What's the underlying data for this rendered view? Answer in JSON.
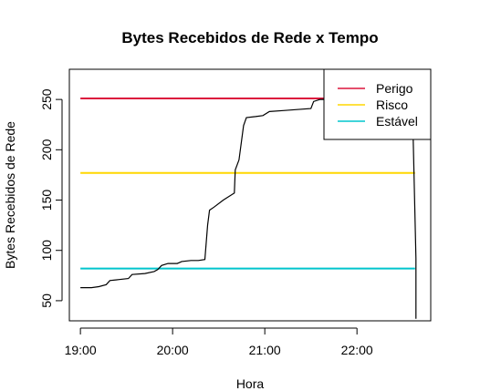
{
  "chart_data": {
    "type": "line",
    "title": "Bytes Recebidos de Rede x Tempo",
    "xlabel": "Hora",
    "ylabel": "Bytes Recebidos de Rede",
    "x_unit": "hours",
    "xlim": [
      18.88,
      22.8
    ],
    "ylim": [
      30,
      280
    ],
    "x_ticks": [
      {
        "value": 19,
        "label": "19:00"
      },
      {
        "value": 20,
        "label": "20:00"
      },
      {
        "value": 21,
        "label": "21:00"
      },
      {
        "value": 22,
        "label": "22:00"
      }
    ],
    "y_ticks": [
      {
        "value": 50,
        "label": "50"
      },
      {
        "value": 100,
        "label": "100"
      },
      {
        "value": 150,
        "label": "150"
      },
      {
        "value": 200,
        "label": "200"
      },
      {
        "value": 250,
        "label": "250"
      }
    ],
    "legend": {
      "position": "top-right",
      "entries": [
        {
          "label": "Perigo",
          "color": "#dc143c"
        },
        {
          "label": "Risco",
          "color": "#ffd700"
        },
        {
          "label": "Estável",
          "color": "#00c5cd"
        }
      ]
    },
    "series": [
      {
        "color": "#000000",
        "points": [
          [
            19.0,
            63
          ],
          [
            19.12,
            63
          ],
          [
            19.2,
            64
          ],
          [
            19.28,
            66
          ],
          [
            19.32,
            70
          ],
          [
            19.42,
            71
          ],
          [
            19.52,
            72
          ],
          [
            19.56,
            76
          ],
          [
            19.7,
            77
          ],
          [
            19.8,
            79
          ],
          [
            19.84,
            81
          ],
          [
            19.88,
            85
          ],
          [
            19.95,
            87
          ],
          [
            20.05,
            87
          ],
          [
            20.1,
            89
          ],
          [
            20.2,
            90
          ],
          [
            20.28,
            90
          ],
          [
            20.35,
            91
          ],
          [
            20.38,
            125
          ],
          [
            20.4,
            140
          ],
          [
            20.45,
            143
          ],
          [
            20.55,
            150
          ],
          [
            20.67,
            157
          ],
          [
            20.68,
            180
          ],
          [
            20.72,
            190
          ],
          [
            20.77,
            224
          ],
          [
            20.8,
            232
          ],
          [
            20.9,
            233
          ],
          [
            20.98,
            234
          ],
          [
            21.05,
            238
          ],
          [
            21.2,
            239
          ],
          [
            21.35,
            240
          ],
          [
            21.5,
            241
          ],
          [
            21.53,
            248
          ],
          [
            21.6,
            250
          ],
          [
            22.6,
            250
          ],
          [
            22.6,
            250
          ],
          [
            22.64,
            92
          ],
          [
            22.64,
            32
          ]
        ]
      }
    ],
    "thresholds": [
      {
        "label": "Perigo",
        "y": 251,
        "x_start": 19.0,
        "x_end": 22.63,
        "color": "#dc143c"
      },
      {
        "label": "Risco",
        "y": 177,
        "x_start": 19.0,
        "x_end": 22.63,
        "color": "#ffd700"
      },
      {
        "label": "Estável",
        "y": 82,
        "x_start": 19.0,
        "x_end": 22.63,
        "color": "#00c5cd"
      }
    ]
  }
}
